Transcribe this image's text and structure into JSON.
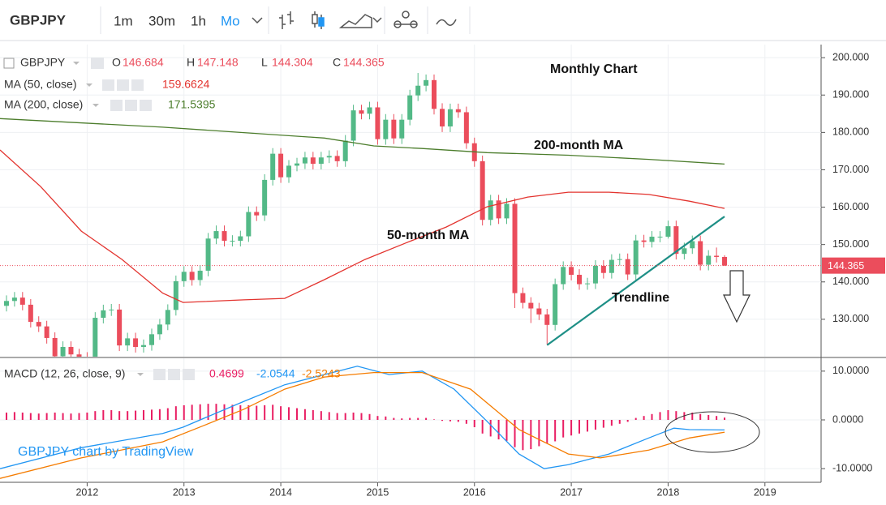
{
  "toolbar": {
    "symbol": "GBPJPY",
    "intervals": [
      "1m",
      "30m",
      "1h",
      "Mo"
    ],
    "active_interval": 3
  },
  "watermark": "GBPJPY chart by TradingView",
  "chart_data": [
    {
      "type": "candlestick",
      "symbol": "GBPJPY",
      "ohlc_labels": [
        "O",
        "H",
        "L",
        "C"
      ],
      "up_color": "#53b987",
      "down_color": "#eb4d5c",
      "grid": true,
      "xlim": [
        2011.1,
        2019.58
      ],
      "ylim": [
        120,
        203.5
      ],
      "yticks": [
        {
          "value": 130,
          "label": "130.000"
        },
        {
          "value": 140,
          "label": "140.000"
        },
        {
          "value": 150,
          "label": "150.000"
        },
        {
          "value": 160,
          "label": "160.000"
        },
        {
          "value": 170,
          "label": "170.000"
        },
        {
          "value": 180,
          "label": "180.000"
        },
        {
          "value": 190,
          "label": "190.000"
        },
        {
          "value": 200,
          "label": "200.000"
        }
      ],
      "x": [
        2011.167,
        2011.25,
        2011.333,
        2011.417,
        2011.5,
        2011.583,
        2011.667,
        2011.75,
        2011.833,
        2011.917,
        2012.0,
        2012.083,
        2012.167,
        2012.25,
        2012.333,
        2012.417,
        2012.5,
        2012.583,
        2012.667,
        2012.75,
        2012.833,
        2012.917,
        2013.0,
        2013.083,
        2013.167,
        2013.25,
        2013.333,
        2013.417,
        2013.5,
        2013.583,
        2013.667,
        2013.75,
        2013.833,
        2013.917,
        2014.0,
        2014.083,
        2014.167,
        2014.25,
        2014.333,
        2014.417,
        2014.5,
        2014.583,
        2014.667,
        2014.75,
        2014.833,
        2014.917,
        2015.0,
        2015.083,
        2015.167,
        2015.25,
        2015.333,
        2015.417,
        2015.5,
        2015.583,
        2015.667,
        2015.75,
        2015.833,
        2015.917,
        2016.0,
        2016.083,
        2016.167,
        2016.25,
        2016.333,
        2016.417,
        2016.5,
        2016.583,
        2016.667,
        2016.75,
        2016.833,
        2016.917,
        2017.0,
        2017.083,
        2017.167,
        2017.25,
        2017.333,
        2017.417,
        2017.5,
        2017.583,
        2017.667,
        2017.75,
        2017.833,
        2017.917,
        2018.0,
        2018.083,
        2018.167,
        2018.25,
        2018.333,
        2018.417,
        2018.5,
        2018.583
      ],
      "open": [
        133.6,
        134.9,
        135.8,
        133.9,
        129.3,
        128.1,
        125.0,
        120.1,
        122.6,
        120.6,
        119.7,
        119.4,
        130.4,
        132.4,
        132.6,
        123.0,
        124.9,
        122.6,
        123.1,
        126.0,
        128.6,
        132.5,
        140.2,
        142.7,
        140.5,
        143.0,
        151.6,
        153.6,
        151.0,
        151.0,
        152.2,
        158.7,
        157.8,
        167.3,
        174.3,
        168.0,
        171.1,
        171.7,
        173.3,
        171.6,
        173.3,
        173.7,
        172.3,
        177.8,
        185.9,
        185.0,
        186.7,
        178.2,
        183.4,
        178.4,
        183.4,
        189.9,
        192.5,
        194.0,
        186.3,
        181.6,
        186.2,
        185.4,
        177.1,
        172.3,
        156.6,
        161.8,
        157.0,
        160.9,
        137.0,
        134.4,
        132.9,
        131.3,
        128.5,
        139.4,
        144.0,
        141.9,
        139.4,
        139.6,
        144.3,
        142.4,
        145.9,
        146.1,
        142.0,
        151.1,
        150.7,
        152.1,
        152.1,
        154.9,
        147.5,
        149.0,
        150.9,
        144.6,
        147.0,
        146.684
      ],
      "high": [
        136.4,
        137.3,
        137.3,
        135.4,
        130.8,
        129.6,
        126.5,
        124.1,
        124.1,
        122.1,
        121.2,
        131.9,
        133.9,
        134.1,
        134.1,
        126.4,
        126.4,
        124.6,
        127.5,
        130.1,
        134.0,
        141.7,
        144.2,
        144.2,
        144.5,
        153.1,
        155.1,
        155.1,
        152.5,
        153.7,
        160.2,
        160.2,
        168.8,
        175.8,
        175.8,
        172.6,
        173.2,
        174.8,
        174.8,
        174.8,
        175.2,
        175.2,
        179.3,
        187.4,
        187.4,
        188.2,
        188.2,
        184.9,
        184.9,
        184.9,
        191.4,
        195.9,
        195.5,
        195.5,
        187.8,
        187.7,
        187.7,
        186.9,
        178.6,
        173.8,
        163.3,
        163.3,
        162.4,
        162.4,
        138.5,
        135.9,
        134.4,
        132.8,
        140.9,
        145.5,
        145.5,
        143.4,
        141.1,
        145.8,
        145.8,
        147.4,
        147.6,
        147.6,
        152.6,
        152.6,
        153.6,
        153.6,
        156.4,
        156.4,
        150.5,
        152.4,
        152.4,
        148.5,
        149.2,
        147.148
      ],
      "low": [
        132.1,
        133.4,
        132.4,
        127.8,
        126.6,
        123.5,
        118.6,
        118.6,
        119.1,
        118.2,
        117.9,
        117.9,
        128.9,
        130.9,
        121.5,
        121.5,
        121.1,
        121.1,
        121.6,
        124.5,
        127.1,
        131.0,
        138.7,
        139.0,
        139.0,
        141.5,
        150.1,
        149.5,
        149.5,
        149.5,
        150.7,
        156.3,
        156.3,
        165.8,
        166.5,
        166.5,
        169.6,
        170.2,
        170.1,
        170.1,
        171.8,
        170.8,
        170.8,
        176.3,
        183.5,
        183.5,
        176.7,
        176.7,
        176.9,
        176.9,
        181.9,
        188.4,
        191.0,
        184.8,
        180.1,
        180.1,
        183.9,
        175.6,
        170.8,
        155.1,
        155.1,
        155.5,
        155.5,
        133.0,
        132.9,
        129.0,
        129.8,
        123.3,
        127.0,
        137.9,
        140.4,
        137.9,
        137.9,
        138.1,
        140.9,
        140.9,
        144.4,
        140.5,
        140.5,
        149.2,
        149.2,
        150.6,
        151.6,
        146.0,
        146.0,
        147.5,
        143.1,
        143.1,
        145.2,
        144.304
      ],
      "close": [
        134.9,
        135.8,
        133.9,
        129.3,
        128.1,
        125.0,
        120.1,
        122.6,
        120.6,
        119.7,
        119.4,
        130.4,
        132.4,
        132.6,
        123.0,
        124.9,
        122.6,
        123.1,
        126.0,
        128.6,
        132.5,
        140.2,
        142.7,
        140.5,
        143.0,
        151.6,
        153.6,
        151.0,
        151.0,
        152.2,
        158.7,
        157.8,
        167.3,
        174.3,
        168.0,
        171.1,
        171.7,
        173.3,
        171.6,
        173.3,
        173.7,
        172.3,
        177.8,
        185.9,
        185.0,
        186.7,
        178.2,
        183.4,
        178.4,
        183.4,
        189.9,
        192.5,
        194.0,
        186.3,
        181.6,
        186.2,
        185.4,
        177.1,
        172.3,
        156.6,
        161.8,
        157.0,
        160.9,
        137.0,
        134.4,
        132.9,
        131.3,
        128.5,
        139.4,
        144.0,
        141.9,
        139.4,
        139.6,
        144.3,
        142.4,
        145.9,
        146.1,
        142.0,
        151.1,
        150.7,
        152.1,
        152.1,
        154.9,
        147.5,
        149.0,
        150.9,
        144.6,
        147.0,
        146.684,
        144.365
      ],
      "series": [
        {
          "name": "MA (50, close)",
          "color": "#e3342f",
          "x": [
            2011.1,
            2011.52,
            2011.94,
            2012.36,
            2012.78,
            2012.99,
            2013.62,
            2014.04,
            2014.45,
            2014.87,
            2015.29,
            2015.71,
            2016.13,
            2016.55,
            2016.97,
            2017.39,
            2017.8,
            2018.22,
            2018.583
          ],
          "values": [
            175.3,
            165.5,
            153.6,
            146.0,
            137.0,
            134.5,
            135.2,
            135.6,
            140.6,
            146.0,
            150.4,
            154.7,
            160.1,
            162.7,
            164.0,
            164.0,
            163.4,
            161.6,
            159.6624
          ]
        },
        {
          "name": "MA (200, close)",
          "color": "#4c7d2c",
          "x": [
            2011.1,
            2012.78,
            2014.45,
            2014.96,
            2015.46,
            2016.13,
            2016.97,
            2017.8,
            2018.583
          ],
          "values": [
            183.7,
            181.4,
            178.5,
            176.4,
            175.7,
            174.6,
            173.9,
            172.8,
            171.5395
          ]
        }
      ],
      "trendline": {
        "name": "Trendline",
        "color": "#1e8f86",
        "x": [
          2016.75,
          2018.583
        ],
        "values": [
          123.1,
          157.5
        ]
      },
      "annotations": [
        "Monthly Chart",
        "200-month MA",
        "50-month MA"
      ]
    },
    {
      "type": "macd",
      "title": "MACD (12, 26, close, 9)",
      "hist_color": "#e91e63",
      "grid": true,
      "xlim": [
        2011.1,
        2019.58
      ],
      "ylim": [
        -12.8,
        12.8
      ],
      "yticks": [
        {
          "value": -10,
          "label": "-10.0000"
        },
        {
          "value": 0,
          "label": "0.0000"
        },
        {
          "value": 10,
          "label": "10.0000"
        }
      ],
      "xticks": [
        2012,
        2013,
        2014,
        2015,
        2016,
        2017,
        2018,
        2019
      ],
      "x": [
        2011.167,
        2011.25,
        2011.333,
        2011.417,
        2011.5,
        2011.583,
        2011.667,
        2011.75,
        2011.833,
        2011.917,
        2012.0,
        2012.083,
        2012.167,
        2012.25,
        2012.333,
        2012.417,
        2012.5,
        2012.583,
        2012.667,
        2012.75,
        2012.833,
        2012.917,
        2013.0,
        2013.083,
        2013.167,
        2013.25,
        2013.333,
        2013.417,
        2013.5,
        2013.583,
        2013.667,
        2013.75,
        2013.833,
        2013.917,
        2014.0,
        2014.083,
        2014.167,
        2014.25,
        2014.333,
        2014.417,
        2014.5,
        2014.583,
        2014.667,
        2014.75,
        2014.833,
        2014.917,
        2015.0,
        2015.083,
        2015.167,
        2015.25,
        2015.333,
        2015.417,
        2015.5,
        2015.583,
        2015.667,
        2015.75,
        2015.833,
        2015.917,
        2016.0,
        2016.083,
        2016.167,
        2016.25,
        2016.333,
        2016.417,
        2016.5,
        2016.583,
        2016.667,
        2016.75,
        2016.833,
        2016.917,
        2017.0,
        2017.083,
        2017.167,
        2017.25,
        2017.333,
        2017.417,
        2017.5,
        2017.583,
        2017.667,
        2017.75,
        2017.833,
        2017.917,
        2018.0,
        2018.083,
        2018.167,
        2018.25,
        2018.333,
        2018.417,
        2018.5,
        2018.583
      ],
      "histogram": [
        1.5,
        1.6,
        1.5,
        1.4,
        1.3,
        1.4,
        1.5,
        1.4,
        1.3,
        1.4,
        1.5,
        1.8,
        2.0,
        2.0,
        1.8,
        1.8,
        1.9,
        2.0,
        2.1,
        2.2,
        2.4,
        2.8,
        3.0,
        3.1,
        3.2,
        3.3,
        3.3,
        3.2,
        3.1,
        3.0,
        3.0,
        2.9,
        3.0,
        3.1,
        2.8,
        2.6,
        2.4,
        2.2,
        2.0,
        1.8,
        1.6,
        1.4,
        1.4,
        1.5,
        1.4,
        1.2,
        0.8,
        0.7,
        0.4,
        0.3,
        0.4,
        0.4,
        0.4,
        0.1,
        -0.2,
        -0.3,
        -0.4,
        -0.8,
        -1.5,
        -2.8,
        -3.4,
        -4.0,
        -4.3,
        -5.6,
        -6.2,
        -6.0,
        -5.4,
        -4.8,
        -4.4,
        -3.6,
        -3.2,
        -2.8,
        -2.4,
        -2.0,
        -1.6,
        -1.2,
        -0.8,
        -0.4,
        0.4,
        0.8,
        1.2,
        1.6,
        2.0,
        1.8,
        1.6,
        1.5,
        1.2,
        1.0,
        0.8,
        0.4699
      ],
      "series": [
        {
          "color": "#2196f3",
          "x": [
            2011.1,
            2011.94,
            2012.78,
            2012.99,
            2013.62,
            2014.04,
            2014.45,
            2014.79,
            2015.12,
            2015.46,
            2015.79,
            2016.13,
            2016.46,
            2016.72,
            2016.97,
            2017.39,
            2017.8,
            2018.06,
            2018.22,
            2018.583
          ],
          "values": [
            -10.0,
            -5.7,
            -2.8,
            -1.5,
            3.8,
            7.2,
            9.3,
            11.0,
            9.3,
            10.0,
            6.3,
            -0.3,
            -7.0,
            -10.0,
            -9.2,
            -7.0,
            -3.7,
            -1.7,
            -2.0,
            -2.0544
          ]
        },
        {
          "color": "#f57c00",
          "x": [
            2011.1,
            2011.94,
            2012.78,
            2013.2,
            2013.62,
            2014.04,
            2014.45,
            2014.96,
            2015.46,
            2015.96,
            2016.46,
            2016.97,
            2017.3,
            2017.8,
            2018.22,
            2018.583
          ],
          "values": [
            -12.0,
            -7.8,
            -4.5,
            -1.2,
            2.2,
            6.3,
            8.8,
            9.7,
            9.7,
            6.3,
            -2.0,
            -7.0,
            -7.8,
            -6.2,
            -3.7,
            -2.5243
          ]
        }
      ]
    }
  ]
}
